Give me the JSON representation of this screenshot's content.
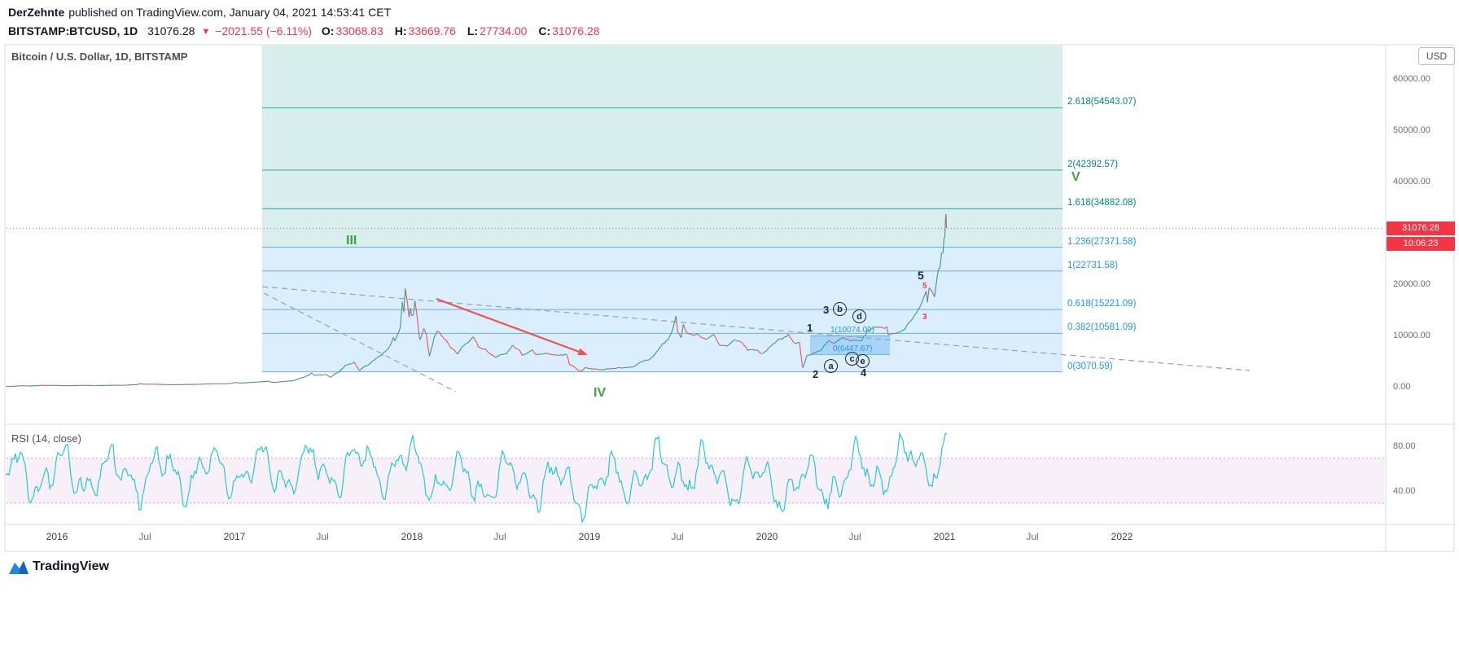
{
  "header": {
    "author": "DerZehnte",
    "published_text": "published on TradingView.com, January 04, 2021 14:53:41 CET",
    "symbol_interval": "BITSTAMP:BTCUSD, 1D",
    "last_price": "31076.28",
    "down_icon": "▼",
    "change": "−2021.55 (−6.11%)",
    "ohlc": [
      {
        "label": "O:",
        "value": "33068.83"
      },
      {
        "label": "H:",
        "value": "33669.76"
      },
      {
        "label": "L:",
        "value": "27734.00"
      },
      {
        "label": "C:",
        "value": "31076.28"
      }
    ]
  },
  "chart": {
    "title": "Bitcoin / U.S. Dollar, 1D, BITSTAMP",
    "currency_button": "USD",
    "price_badge": "31076.28",
    "countdown_badge": "10:06:23",
    "price_axis": [
      "60000.00",
      "50000.00",
      "40000.00",
      "20000.00",
      "10000.00",
      "0.00"
    ],
    "time_axis": [
      "2016",
      "Jul",
      "2017",
      "Jul",
      "2018",
      "Jul",
      "2019",
      "Jul",
      "2020",
      "Jul",
      "2021",
      "Jul",
      "2022"
    ],
    "fib_labels": [
      "2.618(54543.07)",
      "2(42392.57)",
      "1.618(34882.08)",
      "1.236(27371.58)",
      "1(22731.58)",
      "0.618(15221.09)",
      "0.382(10581.09)",
      "0(3070.59)"
    ],
    "minor_fib_labels": {
      "one": "1(10074.09)",
      "zero": "0(6447.67)"
    },
    "wave_labels": {
      "III": "III",
      "IV": "IV",
      "V": "V",
      "n1": "1",
      "n2": "2",
      "n3": "3",
      "n4": "4",
      "n5": "5",
      "a": "a",
      "b": "b",
      "c": "c",
      "d": "d",
      "e": "e",
      "r3": "3",
      "r5": "5"
    }
  },
  "rsi": {
    "label": "RSI (14, close)",
    "axis": [
      "80.00",
      "40.00"
    ]
  },
  "footer": {
    "brand": "TradingView"
  },
  "chart_data": {
    "type": "line",
    "symbol": "BITSTAMP:BTCUSD",
    "interval": "1D",
    "title": "Bitcoin / U.S. Dollar, 1D, BITSTAMP",
    "price_axis_ticks": [
      0,
      10000,
      20000,
      30000,
      40000,
      50000,
      60000
    ],
    "visible_range": {
      "start": "2015-10",
      "end": "2022-04"
    },
    "last": {
      "price": 31076.28,
      "change": -2021.55,
      "change_pct": -6.11,
      "open": 33068.83,
      "high": 33669.76,
      "low": 27734.0,
      "close": 31076.28
    },
    "countdown": "10:06:23",
    "fib_extension": {
      "levels": [
        {
          "ratio": 2.618,
          "price": 54543.07
        },
        {
          "ratio": 2,
          "price": 42392.57
        },
        {
          "ratio": 1.618,
          "price": 34882.08
        },
        {
          "ratio": 1.236,
          "price": 27371.58
        },
        {
          "ratio": 1,
          "price": 22731.58
        },
        {
          "ratio": 0.618,
          "price": 15221.09
        },
        {
          "ratio": 0.382,
          "price": 10581.09
        },
        {
          "ratio": 0,
          "price": 3070.59
        }
      ]
    },
    "minor_fib": {
      "levels": [
        {
          "ratio": 1,
          "price": 10074.09
        },
        {
          "ratio": 0,
          "price": 6447.67
        }
      ]
    },
    "elliott_waves": [
      "III",
      "IV",
      "V",
      "1",
      "2",
      "3",
      "4",
      "5",
      "a",
      "b",
      "c",
      "d",
      "e"
    ],
    "rsi": {
      "length": 14,
      "source": "close",
      "bands": [
        30,
        70
      ],
      "approx_range": [
        15,
        90
      ]
    },
    "price_path": [
      [
        -3.45,
        245
      ],
      [
        -3.0,
        240
      ],
      [
        -2.6,
        330
      ],
      [
        -2.3,
        380
      ],
      [
        -2.0,
        325
      ],
      [
        -1.5,
        360
      ],
      [
        -1.2,
        415
      ],
      [
        -1.0,
        460
      ],
      [
        -0.8,
        428
      ],
      [
        -0.5,
        436
      ],
      [
        -0.2,
        430
      ],
      [
        0.3,
        400
      ],
      [
        0.5,
        368
      ],
      [
        0.97,
        370
      ],
      [
        1.4,
        420
      ],
      [
        1.97,
        437
      ],
      [
        2.5,
        408
      ],
      [
        2.97,
        416
      ],
      [
        3.5,
        440
      ],
      [
        3.97,
        448
      ],
      [
        4.5,
        452
      ],
      [
        4.9,
        530
      ],
      [
        5.4,
        580
      ],
      [
        5.6,
        760
      ],
      [
        5.8,
        670
      ],
      [
        5.97,
        673
      ],
      [
        6.5,
        660
      ],
      [
        6.97,
        624
      ],
      [
        7.5,
        580
      ],
      [
        7.97,
        575
      ],
      [
        8.5,
        600
      ],
      [
        8.97,
        610
      ],
      [
        9.5,
        640
      ],
      [
        9.97,
        700
      ],
      [
        10.5,
        730
      ],
      [
        10.97,
        745
      ],
      [
        11.3,
        758
      ],
      [
        11.7,
        790
      ],
      [
        11.97,
        963
      ],
      [
        12.1,
        1000
      ],
      [
        12.35,
        890
      ],
      [
        12.7,
        920
      ],
      [
        12.97,
        970
      ],
      [
        13.3,
        1050
      ],
      [
        13.97,
        1180
      ],
      [
        14.3,
        1250
      ],
      [
        14.55,
        1000
      ],
      [
        14.97,
        1080
      ],
      [
        15.3,
        1200
      ],
      [
        15.97,
        1350
      ],
      [
        16.2,
        1550
      ],
      [
        16.5,
        1900
      ],
      [
        16.97,
        2300
      ],
      [
        17.2,
        2850
      ],
      [
        17.4,
        2450
      ],
      [
        17.97,
        2480
      ],
      [
        18.2,
        2550
      ],
      [
        18.5,
        1990
      ],
      [
        18.8,
        2750
      ],
      [
        18.97,
        2875
      ],
      [
        19.2,
        3400
      ],
      [
        19.5,
        4400
      ],
      [
        19.97,
        4703
      ],
      [
        20.1,
        4950
      ],
      [
        20.45,
        3250
      ],
      [
        20.8,
        4200
      ],
      [
        20.97,
        4360
      ],
      [
        21.3,
        5000
      ],
      [
        21.6,
        5700
      ],
      [
        21.97,
        6440
      ],
      [
        22.2,
        7100
      ],
      [
        22.5,
        8000
      ],
      [
        22.75,
        9900
      ],
      [
        22.85,
        9000
      ],
      [
        22.97,
        9916
      ],
      [
        23.2,
        11700
      ],
      [
        23.35,
        16800
      ],
      [
        23.45,
        14500
      ],
      [
        23.55,
        19666
      ],
      [
        23.7,
        16500
      ],
      [
        23.8,
        13850
      ],
      [
        23.9,
        15500
      ],
      [
        23.97,
        13850
      ],
      [
        24.1,
        14500
      ],
      [
        24.2,
        17100
      ],
      [
        24.35,
        13800
      ],
      [
        24.5,
        9900
      ],
      [
        24.55,
        9200
      ],
      [
        24.8,
        11500
      ],
      [
        24.97,
        10200
      ],
      [
        25.18,
        6050
      ],
      [
        25.5,
        9700
      ],
      [
        25.7,
        11000
      ],
      [
        25.97,
        10300
      ],
      [
        26.3,
        9100
      ],
      [
        26.6,
        8000
      ],
      [
        26.97,
        6850
      ],
      [
        27.1,
        6650
      ],
      [
        27.4,
        8000
      ],
      [
        27.97,
        9240
      ],
      [
        28.15,
        9800
      ],
      [
        28.6,
        7600
      ],
      [
        28.97,
        7500
      ],
      [
        29.3,
        6500
      ],
      [
        29.65,
        5900
      ],
      [
        29.97,
        6400
      ],
      [
        30.4,
        6700
      ],
      [
        30.8,
        8200
      ],
      [
        30.97,
        7780
      ],
      [
        31.2,
        7500
      ],
      [
        31.45,
        6300
      ],
      [
        31.75,
        6700
      ],
      [
        31.97,
        7030
      ],
      [
        32.15,
        7350
      ],
      [
        32.4,
        6400
      ],
      [
        32.97,
        6600
      ],
      [
        33.3,
        6500
      ],
      [
        33.97,
        6300
      ],
      [
        34.3,
        6350
      ],
      [
        34.45,
        6400
      ],
      [
        34.55,
        5600
      ],
      [
        34.65,
        4500
      ],
      [
        34.8,
        4300
      ],
      [
        34.97,
        4017
      ],
      [
        35.2,
        3500
      ],
      [
        35.45,
        3200
      ],
      [
        35.7,
        3900
      ],
      [
        35.97,
        3690
      ],
      [
        36.3,
        3650
      ],
      [
        36.8,
        3480
      ],
      [
        37.5,
        3700
      ],
      [
        37.97,
        3820
      ],
      [
        38.5,
        3900
      ],
      [
        38.97,
        4100
      ],
      [
        39.5,
        5050
      ],
      [
        39.97,
        5320
      ],
      [
        40.4,
        6400
      ],
      [
        40.8,
        8000
      ],
      [
        40.97,
        8560
      ],
      [
        41.3,
        9300
      ],
      [
        41.6,
        11000
      ],
      [
        41.85,
        13800
      ],
      [
        41.97,
        10800
      ],
      [
        42.2,
        9700
      ],
      [
        42.35,
        12300
      ],
      [
        42.6,
        10600
      ],
      [
        42.97,
        10080
      ],
      [
        43.3,
        10500
      ],
      [
        43.6,
        9600
      ],
      [
        43.97,
        9600
      ],
      [
        44.4,
        10300
      ],
      [
        44.8,
        8300
      ],
      [
        44.97,
        8300
      ],
      [
        45.3,
        8000
      ],
      [
        45.85,
        9550
      ],
      [
        45.97,
        9150
      ],
      [
        46.3,
        8800
      ],
      [
        46.7,
        7300
      ],
      [
        46.97,
        7560
      ],
      [
        47.4,
        7200
      ],
      [
        47.6,
        6600
      ],
      [
        47.97,
        7190
      ],
      [
        48.4,
        8400
      ],
      [
        48.8,
        9350
      ],
      [
        48.97,
        9350
      ],
      [
        49.45,
        10300
      ],
      [
        49.8,
        8800
      ],
      [
        49.97,
        8550
      ],
      [
        50.2,
        8750
      ],
      [
        50.4,
        4000
      ],
      [
        50.45,
        3867
      ],
      [
        50.7,
        6200
      ],
      [
        50.97,
        6440
      ],
      [
        51.3,
        6900
      ],
      [
        51.6,
        7100
      ],
      [
        51.97,
        8620
      ],
      [
        52.2,
        9000
      ],
      [
        52.4,
        8600
      ],
      [
        52.97,
        9450
      ],
      [
        53.3,
        9600
      ],
      [
        53.6,
        9300
      ],
      [
        53.97,
        9140
      ],
      [
        54.4,
        9250
      ],
      [
        54.8,
        11000
      ],
      [
        54.97,
        11340
      ],
      [
        55.3,
        11750
      ],
      [
        55.6,
        11900
      ],
      [
        55.97,
        11650
      ],
      [
        56.1,
        12050
      ],
      [
        56.2,
        10300
      ],
      [
        56.6,
        10700
      ],
      [
        56.97,
        10780
      ],
      [
        57.3,
        11400
      ],
      [
        57.7,
        13000
      ],
      [
        57.97,
        13800
      ],
      [
        58.3,
        15300
      ],
      [
        58.6,
        17700
      ],
      [
        58.77,
        19100
      ],
      [
        58.85,
        16900
      ],
      [
        58.97,
        19700
      ],
      [
        59.15,
        18800
      ],
      [
        59.33,
        17900
      ],
      [
        59.5,
        21300
      ],
      [
        59.6,
        23200
      ],
      [
        59.7,
        23800
      ],
      [
        59.8,
        26500
      ],
      [
        59.9,
        26300
      ],
      [
        59.97,
        28990
      ],
      [
        60.03,
        29400
      ],
      [
        60.06,
        32200
      ],
      [
        60.1,
        34666
      ],
      [
        60.12,
        33000
      ],
      [
        60.14,
        31076
      ]
    ],
    "colors": {
      "down_red": "#f23645",
      "chart_red": "#ef5350",
      "up_teal": "#339b8e",
      "fib_teal_line": "#26a69a",
      "fib_teal_text": "#00897b",
      "fib_blue_line": "#6aabee",
      "fib_blue_text": "#2196f3",
      "fib_teal_fill": "rgba(38,166,154,0.18)",
      "fib_blue_fill": "rgba(33,150,243,0.16)",
      "minor_fib_fill": "rgba(33,150,243,0.28)",
      "wave_green": "#43a047",
      "rsi_line": "#26c6da",
      "rsi_band_line": "rgba(171,71,188,0.55)",
      "rsi_band_fill": "rgba(156,39,176,0.07)",
      "trendline_gray": "#9aa0a6",
      "border_gray": "#d6d9e0"
    }
  }
}
